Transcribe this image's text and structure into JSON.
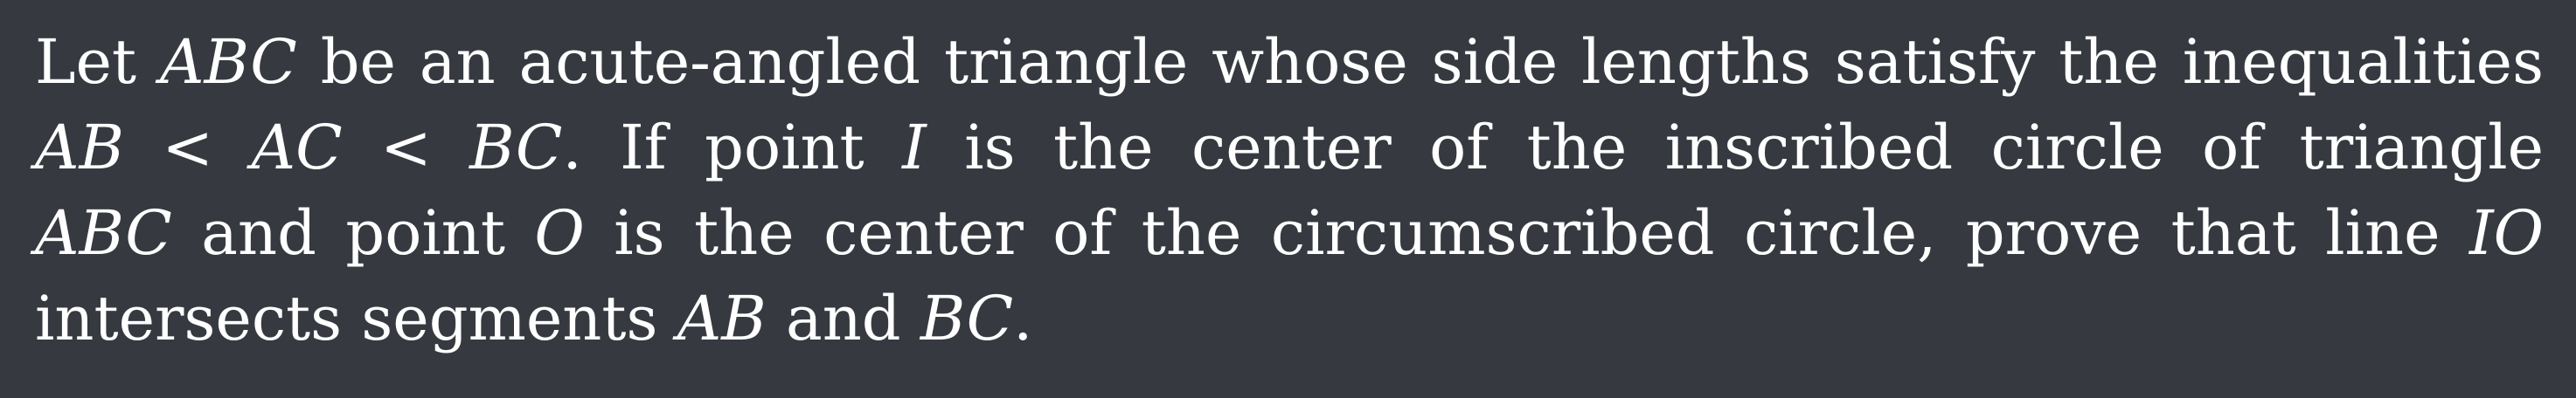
{
  "problem": {
    "lines": [
      {
        "parts": [
          {
            "text": "Let ",
            "math": false
          },
          {
            "text": "ABC",
            "math": true
          },
          {
            "text": " be an acute-angled triangle whose side lengths satisfy the inequalities",
            "math": false
          }
        ]
      },
      {
        "parts": [
          {
            "text": "AB",
            "math": true
          },
          {
            "text": " < ",
            "math": false
          },
          {
            "text": "AC",
            "math": true
          },
          {
            "text": " < ",
            "math": false
          },
          {
            "text": "BC",
            "math": true
          },
          {
            "text": ".  If point ",
            "math": false
          },
          {
            "text": "I",
            "math": true
          },
          {
            "text": " is the center of the inscribed circle of triangle",
            "math": false
          }
        ]
      },
      {
        "parts": [
          {
            "text": "ABC",
            "math": true
          },
          {
            "text": " and point ",
            "math": false
          },
          {
            "text": "O",
            "math": true
          },
          {
            "text": " is the center of the circumscribed circle, prove that line ",
            "math": false
          },
          {
            "text": "IO",
            "math": true
          }
        ]
      },
      {
        "parts": [
          {
            "text": "intersects segments ",
            "math": false
          },
          {
            "text": "AB",
            "math": true
          },
          {
            "text": " and ",
            "math": false
          },
          {
            "text": "BC",
            "math": true
          },
          {
            "text": ".",
            "math": false
          }
        ]
      }
    ]
  }
}
